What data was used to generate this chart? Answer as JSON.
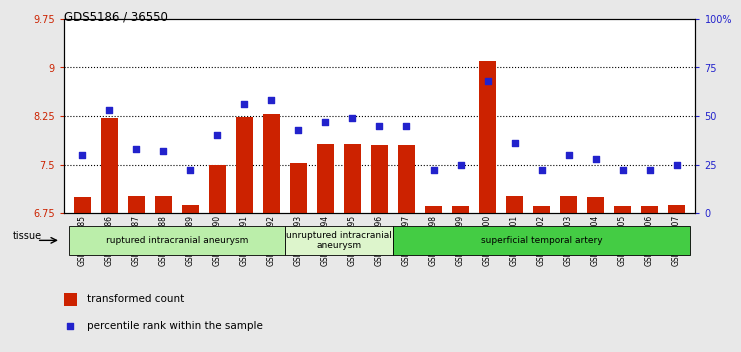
{
  "title": "GDS5186 / 36550",
  "samples": [
    "GSM1306885",
    "GSM1306886",
    "GSM1306887",
    "GSM1306888",
    "GSM1306889",
    "GSM1306890",
    "GSM1306891",
    "GSM1306892",
    "GSM1306893",
    "GSM1306894",
    "GSM1306895",
    "GSM1306896",
    "GSM1306897",
    "GSM1306898",
    "GSM1306899",
    "GSM1306900",
    "GSM1306901",
    "GSM1306902",
    "GSM1306903",
    "GSM1306904",
    "GSM1306905",
    "GSM1306906",
    "GSM1306907"
  ],
  "bar_values": [
    7.0,
    8.22,
    7.02,
    7.02,
    6.88,
    7.5,
    8.24,
    8.28,
    7.52,
    7.82,
    7.82,
    7.8,
    7.8,
    6.86,
    6.86,
    9.1,
    7.02,
    6.86,
    7.02,
    7.0,
    6.86,
    6.86,
    6.88
  ],
  "percentile_values": [
    30,
    53,
    33,
    32,
    22,
    40,
    56,
    58,
    43,
    47,
    49,
    45,
    45,
    22,
    25,
    68,
    36,
    22,
    30,
    28,
    22,
    22,
    25
  ],
  "bar_color": "#cc2200",
  "dot_color": "#2222cc",
  "ylim_left": [
    6.75,
    9.75
  ],
  "ylim_right": [
    0,
    100
  ],
  "yticks_left": [
    6.75,
    7.5,
    8.25,
    9.0,
    9.75
  ],
  "yticks_right": [
    0,
    25,
    50,
    75,
    100
  ],
  "ytick_labels_left": [
    "6.75",
    "7.5",
    "8.25",
    "9",
    "9.75"
  ],
  "ytick_labels_right": [
    "0",
    "25",
    "50",
    "75",
    "100%"
  ],
  "grid_values": [
    7.5,
    8.25,
    9.0
  ],
  "groups": [
    {
      "label": "ruptured intracranial aneurysm",
      "start": 0,
      "end": 8,
      "color": "#bbeeaa"
    },
    {
      "label": "unruptured intracranial\naneurysm",
      "start": 8,
      "end": 12,
      "color": "#ddf5cc"
    },
    {
      "label": "superficial temporal artery",
      "start": 12,
      "end": 23,
      "color": "#44cc44"
    }
  ],
  "tissue_label": "tissue",
  "legend_bar_label": "transformed count",
  "legend_dot_label": "percentile rank within the sample",
  "bg_color": "#e8e8e8",
  "plot_bg_color": "#ffffff"
}
